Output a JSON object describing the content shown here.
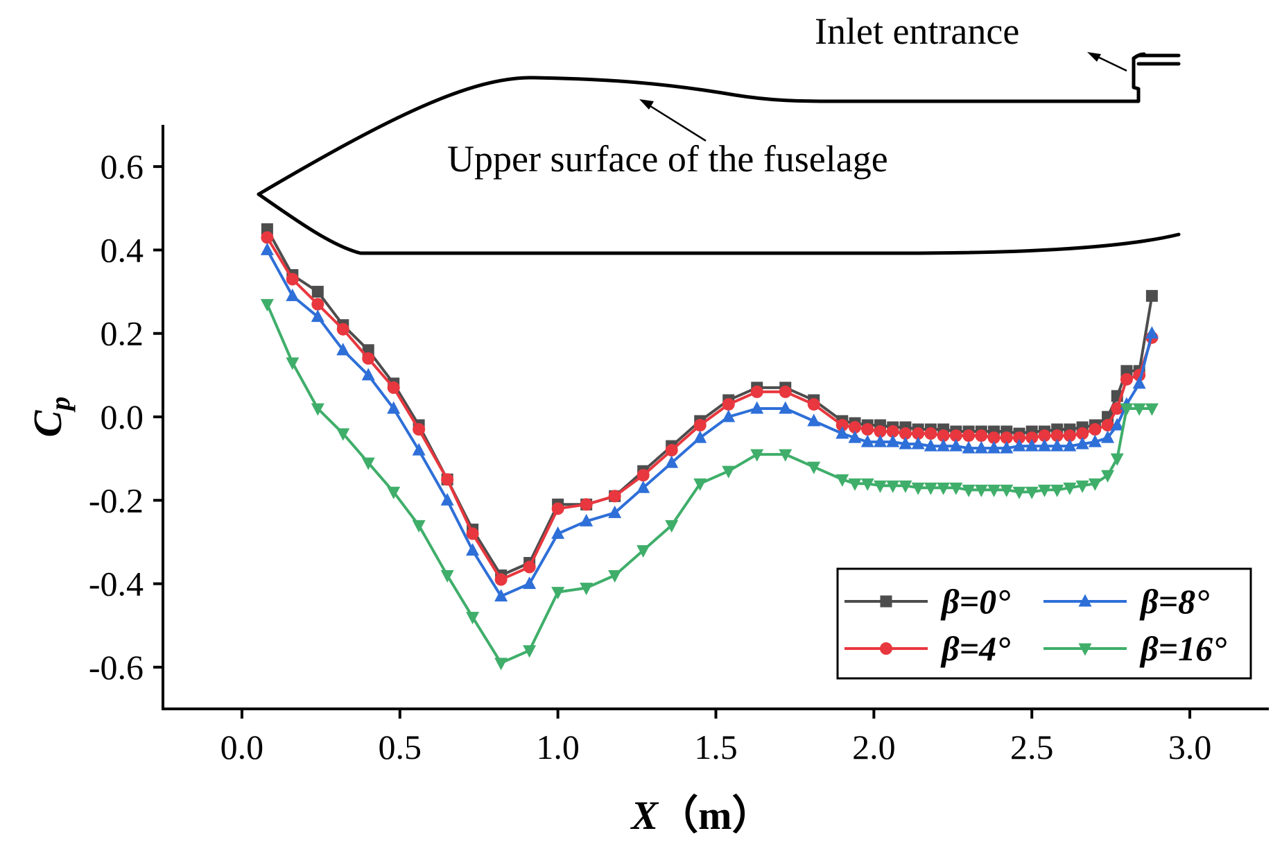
{
  "chart_data": {
    "type": "line",
    "title": "",
    "xlabel": "X",
    "xlabel_unit": "（m）",
    "ylabel": "C",
    "ylabel_sub": "p",
    "xlim": [
      -0.25,
      3.25
    ],
    "ylim": [
      -0.7,
      0.7
    ],
    "xticks": [
      0.0,
      0.5,
      1.0,
      1.5,
      2.0,
      2.5,
      3.0
    ],
    "xtick_labels": [
      "0.0",
      "0.5",
      "1.0",
      "1.5",
      "2.0",
      "2.5",
      "3.0"
    ],
    "yticks": [
      0.6,
      0.4,
      0.2,
      0.0,
      -0.2,
      -0.4,
      -0.6
    ],
    "ytick_labels": [
      "0.6",
      "0.4",
      "0.2",
      "0.0",
      "-0.2",
      "-0.4",
      "-0.6"
    ],
    "legend_position": "bottom-right",
    "annotations": [
      {
        "id": "inlet",
        "text": "Inlet entrance"
      },
      {
        "id": "upper",
        "text": "Upper surface of the fuselage"
      }
    ],
    "x": [
      0.08,
      0.16,
      0.24,
      0.32,
      0.4,
      0.48,
      0.56,
      0.65,
      0.73,
      0.82,
      0.91,
      1.0,
      1.09,
      1.18,
      1.27,
      1.36,
      1.45,
      1.54,
      1.63,
      1.72,
      1.81,
      1.9,
      1.94,
      1.98,
      2.02,
      2.06,
      2.1,
      2.14,
      2.18,
      2.22,
      2.26,
      2.3,
      2.34,
      2.38,
      2.42,
      2.46,
      2.5,
      2.54,
      2.58,
      2.62,
      2.66,
      2.7,
      2.74,
      2.77,
      2.8,
      2.84,
      2.88
    ],
    "series": [
      {
        "name": "β=0°",
        "color": "#4d4d4d",
        "marker": "square",
        "values": [
          0.45,
          0.34,
          0.3,
          0.22,
          0.16,
          0.08,
          -0.02,
          -0.15,
          -0.27,
          -0.38,
          -0.35,
          -0.21,
          -0.21,
          -0.19,
          -0.13,
          -0.07,
          -0.01,
          0.04,
          0.07,
          0.07,
          0.04,
          -0.01,
          -0.015,
          -0.02,
          -0.02,
          -0.025,
          -0.025,
          -0.03,
          -0.03,
          -0.03,
          -0.035,
          -0.035,
          -0.035,
          -0.035,
          -0.035,
          -0.04,
          -0.035,
          -0.035,
          -0.03,
          -0.03,
          -0.025,
          -0.02,
          0.0,
          0.05,
          0.11,
          0.11,
          0.29
        ]
      },
      {
        "name": "β=4°",
        "color": "#e8373e",
        "marker": "circle",
        "values": [
          0.43,
          0.33,
          0.27,
          0.21,
          0.14,
          0.07,
          -0.03,
          -0.15,
          -0.28,
          -0.39,
          -0.36,
          -0.22,
          -0.21,
          -0.19,
          -0.14,
          -0.08,
          -0.02,
          0.03,
          0.06,
          0.06,
          0.03,
          -0.02,
          -0.025,
          -0.03,
          -0.035,
          -0.035,
          -0.04,
          -0.04,
          -0.04,
          -0.045,
          -0.045,
          -0.045,
          -0.045,
          -0.05,
          -0.05,
          -0.05,
          -0.05,
          -0.045,
          -0.045,
          -0.045,
          -0.04,
          -0.03,
          -0.02,
          0.02,
          0.09,
          0.1,
          0.19
        ]
      },
      {
        "name": "β=8°",
        "color": "#2e6fd8",
        "marker": "triangle-up",
        "values": [
          0.4,
          0.29,
          0.24,
          0.16,
          0.1,
          0.02,
          -0.08,
          -0.2,
          -0.32,
          -0.43,
          -0.4,
          -0.28,
          -0.25,
          -0.23,
          -0.17,
          -0.11,
          -0.05,
          0.0,
          0.02,
          0.02,
          -0.01,
          -0.04,
          -0.05,
          -0.06,
          -0.06,
          -0.06,
          -0.065,
          -0.065,
          -0.07,
          -0.07,
          -0.07,
          -0.075,
          -0.075,
          -0.075,
          -0.075,
          -0.07,
          -0.07,
          -0.07,
          -0.07,
          -0.07,
          -0.065,
          -0.06,
          -0.05,
          -0.02,
          0.03,
          0.08,
          0.2
        ]
      },
      {
        "name": "β=16°",
        "color": "#3fae6a",
        "marker": "triangle-down",
        "values": [
          0.27,
          0.13,
          0.02,
          -0.04,
          -0.11,
          -0.18,
          -0.26,
          -0.38,
          -0.48,
          -0.59,
          -0.56,
          -0.42,
          -0.41,
          -0.38,
          -0.32,
          -0.26,
          -0.16,
          -0.13,
          -0.09,
          -0.09,
          -0.12,
          -0.15,
          -0.16,
          -0.16,
          -0.165,
          -0.165,
          -0.165,
          -0.17,
          -0.17,
          -0.17,
          -0.17,
          -0.175,
          -0.175,
          -0.175,
          -0.175,
          -0.18,
          -0.18,
          -0.175,
          -0.175,
          -0.17,
          -0.165,
          -0.16,
          -0.14,
          -0.1,
          0.02,
          0.02,
          0.02
        ]
      }
    ]
  }
}
